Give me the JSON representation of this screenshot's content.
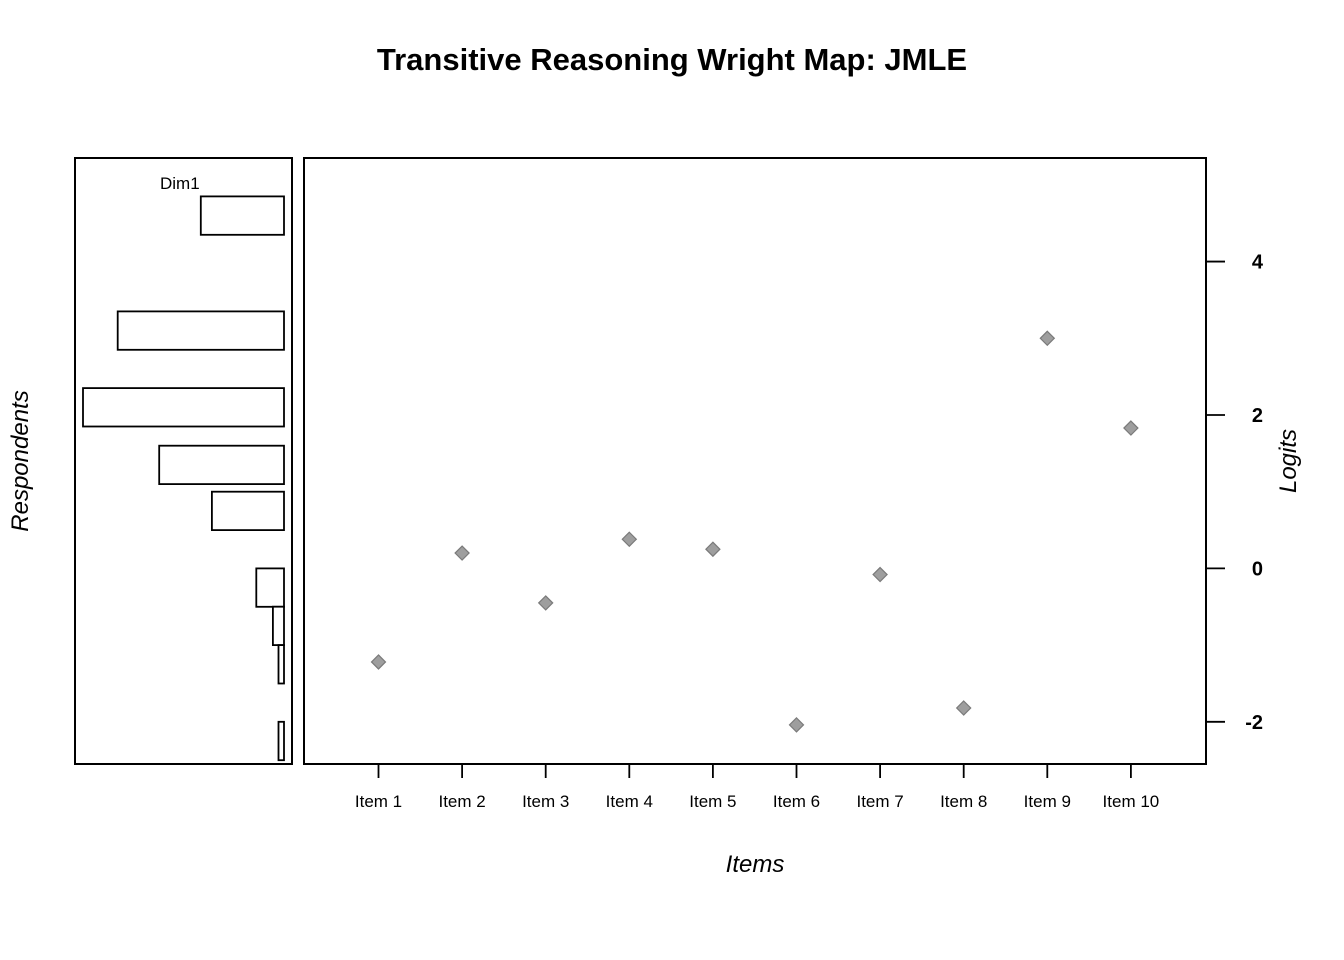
{
  "chart_data": {
    "type": "scatter",
    "title": "Transitive Reasoning Wright Map: JMLE",
    "xlabel": "Items",
    "ylabel": "Logits",
    "left_panel_label": "Respondents",
    "histogram_label": "Dim1",
    "ylim": [
      -2.55,
      5.35
    ],
    "yticks": [
      "-2",
      "0",
      "2",
      "4"
    ],
    "categories": [
      "Item 1",
      "Item 2",
      "Item 3",
      "Item 4",
      "Item 5",
      "Item 6",
      "Item 7",
      "Item 8",
      "Item 9",
      "Item 10"
    ],
    "values": [
      -1.22,
      0.2,
      -0.45,
      0.38,
      0.25,
      -2.04,
      -0.08,
      -1.82,
      3.0,
      1.83
    ],
    "point_color": "#9e9e9e",
    "respondent_histogram": {
      "bins": [
        {
          "low": 4.35,
          "high": 4.85,
          "count": 6
        },
        {
          "low": 2.85,
          "high": 3.35,
          "count": 12
        },
        {
          "low": 1.85,
          "high": 2.35,
          "count": 14.5
        },
        {
          "low": 1.1,
          "high": 1.6,
          "count": 9
        },
        {
          "low": 0.5,
          "high": 1.0,
          "count": 5.2
        },
        {
          "low": -0.5,
          "high": 0.0,
          "count": 2
        },
        {
          "low": -1.0,
          "high": -0.5,
          "count": 0.8
        },
        {
          "low": -1.5,
          "high": -1.0,
          "count": 0.4
        },
        {
          "low": -2.5,
          "high": -2.0,
          "count": 0.4
        }
      ],
      "max_count": 14.5
    }
  }
}
